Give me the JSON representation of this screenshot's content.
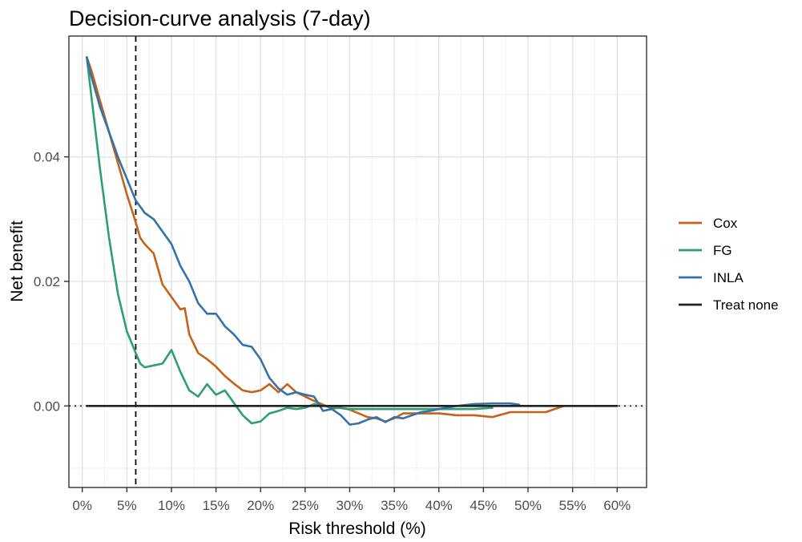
{
  "chart_data": {
    "type": "line",
    "title": "Decision-curve analysis (7-day)",
    "xlabel": "Risk threshold (%)",
    "ylabel": "Net benefit",
    "xlim": [
      -1.5,
      63.3
    ],
    "ylim": [
      -0.0131,
      0.0594
    ],
    "x_ticks": [
      0,
      5,
      10,
      15,
      20,
      25,
      30,
      35,
      40,
      45,
      50,
      55,
      60
    ],
    "x_tick_labels": [
      "0%",
      "5%",
      "10%",
      "15%",
      "20%",
      "25%",
      "30%",
      "35%",
      "40%",
      "45%",
      "50%",
      "55%",
      "60%"
    ],
    "y_ticks": [
      0.0,
      0.02,
      0.04
    ],
    "y_tick_labels": [
      "0.00",
      "0.02",
      "0.04"
    ],
    "grid": true,
    "legend_position": "right",
    "reference_lines": [
      {
        "type": "vertical",
        "x": 6,
        "style": "dashed",
        "color": "#000000"
      },
      {
        "type": "horizontal",
        "y": 0,
        "style": "dotted",
        "color": "#000000"
      }
    ],
    "series": [
      {
        "name": "Cox",
        "color": "#c5621a",
        "x": [
          0.5,
          1,
          2,
          3,
          4,
          5,
          6,
          6.5,
          7,
          8,
          8.5,
          9,
          10,
          11,
          11.5,
          12,
          13,
          14,
          15,
          16,
          17,
          18,
          19,
          20,
          21,
          22,
          23,
          24,
          25,
          26,
          27,
          28,
          29,
          30,
          31,
          32,
          33,
          34,
          35,
          36,
          38,
          40,
          42,
          44,
          46,
          48,
          50,
          52,
          54
        ],
        "y": [
          0.056,
          0.054,
          0.049,
          0.044,
          0.039,
          0.034,
          0.0295,
          0.027,
          0.026,
          0.0245,
          0.022,
          0.0195,
          0.0175,
          0.0155,
          0.0157,
          0.0115,
          0.0085,
          0.0075,
          0.0063,
          0.0048,
          0.0036,
          0.0025,
          0.0022,
          0.0025,
          0.0035,
          0.0022,
          0.0035,
          0.0022,
          0.0015,
          0.0008,
          0.0002,
          -0.0004,
          -0.0003,
          -0.0006,
          -0.0012,
          -0.0018,
          -0.002,
          -0.0025,
          -0.002,
          -0.0012,
          -0.0012,
          -0.0012,
          -0.0015,
          -0.0015,
          -0.0018,
          -0.001,
          -0.001,
          -0.001,
          0.0
        ]
      },
      {
        "name": "FG",
        "color": "#2e9e76",
        "x": [
          0.5,
          1,
          2,
          3,
          4,
          5,
          6,
          6.5,
          7,
          8,
          9,
          10,
          11,
          12,
          13,
          14,
          15,
          16,
          17,
          18,
          19,
          20,
          21,
          22,
          23,
          24,
          25,
          26,
          28,
          30,
          32,
          34,
          36,
          38,
          40,
          42,
          44,
          46
        ],
        "y": [
          0.056,
          0.05,
          0.038,
          0.027,
          0.018,
          0.012,
          0.0085,
          0.0068,
          0.0062,
          0.0065,
          0.0068,
          0.009,
          0.0055,
          0.0025,
          0.0015,
          0.0035,
          0.0018,
          0.0025,
          0.0005,
          -0.0015,
          -0.0028,
          -0.0025,
          -0.0012,
          -0.0008,
          -0.0003,
          -0.0005,
          -0.0003,
          0.0003,
          -0.0002,
          -0.0005,
          -0.0005,
          -0.0005,
          -0.0005,
          -0.0005,
          -0.0005,
          -0.0005,
          -0.0005,
          -0.0003
        ]
      },
      {
        "name": "INLA",
        "color": "#3572a9",
        "x": [
          0.5,
          1,
          2,
          3,
          4,
          5,
          6,
          6.5,
          7,
          8,
          9,
          10,
          11,
          12,
          13,
          14,
          15,
          16,
          17,
          18,
          19,
          20,
          21,
          22,
          23,
          24,
          25,
          26,
          27,
          28,
          29,
          30,
          31,
          32,
          33,
          34,
          35,
          36,
          37,
          38,
          39,
          40,
          42,
          44,
          46,
          48,
          49
        ],
        "y": [
          0.056,
          0.053,
          0.048,
          0.044,
          0.04,
          0.0365,
          0.033,
          0.032,
          0.031,
          0.03,
          0.028,
          0.026,
          0.0225,
          0.02,
          0.0165,
          0.0148,
          0.0148,
          0.0128,
          0.0115,
          0.0098,
          0.0095,
          0.0075,
          0.0045,
          0.0028,
          0.0018,
          0.0022,
          0.0018,
          0.0015,
          -0.0008,
          -0.0005,
          -0.0015,
          -0.003,
          -0.0028,
          -0.0022,
          -0.0018,
          -0.0026,
          -0.0018,
          -0.002,
          -0.0015,
          -0.001,
          -0.0008,
          -0.0005,
          0.0,
          0.0003,
          0.0004,
          0.0004,
          0.0002
        ]
      },
      {
        "name": "Treat none",
        "color": "#222222",
        "x": [
          0.5,
          60
        ],
        "y": [
          0.0,
          0.0
        ]
      }
    ]
  }
}
